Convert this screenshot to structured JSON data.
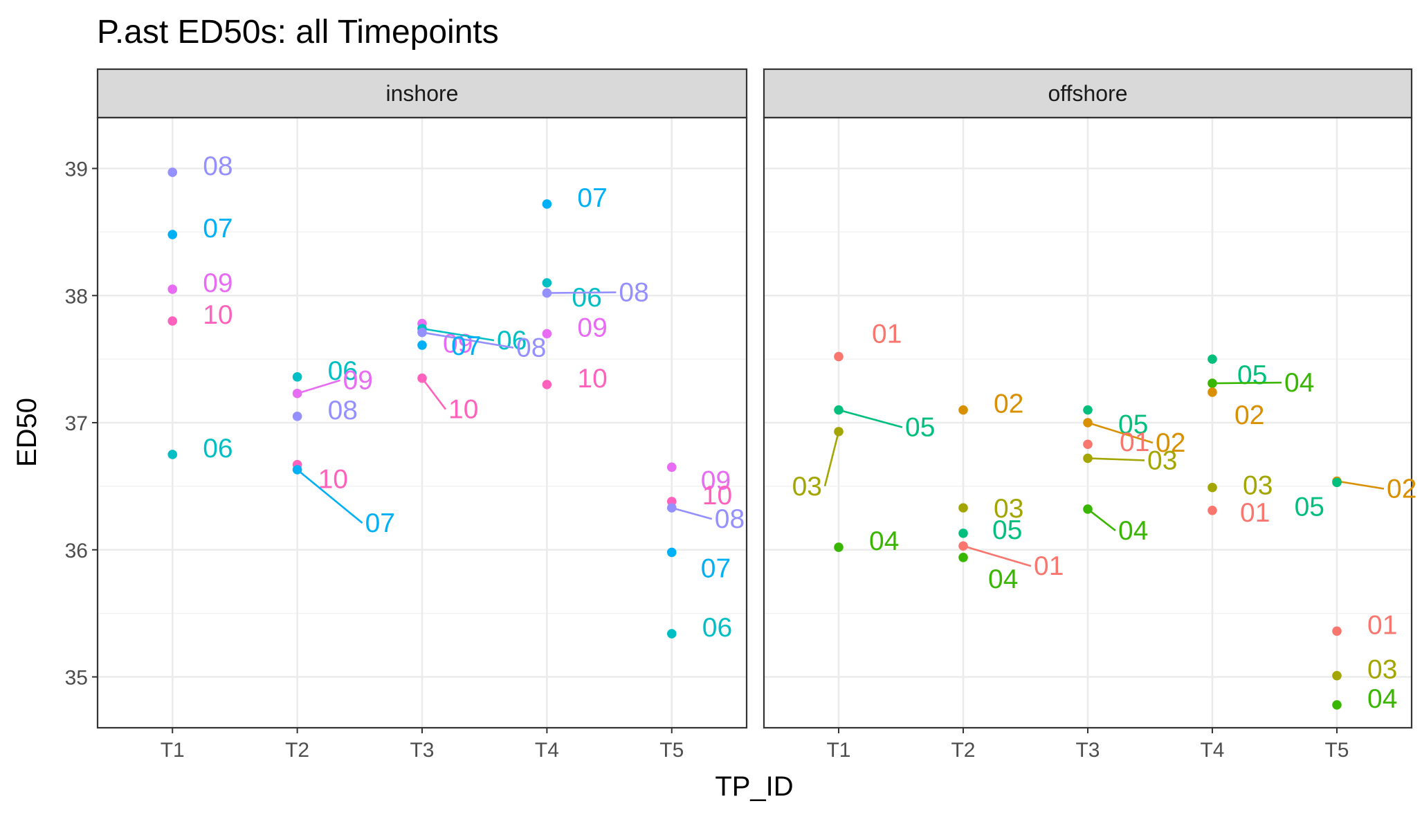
{
  "chart_data": {
    "type": "scatter",
    "title": "P.ast ED50s: all Timepoints",
    "xlabel": "TP_ID",
    "ylabel": "ED50",
    "categories": [
      "T1",
      "T2",
      "T3",
      "T4",
      "T5"
    ],
    "ylim": [
      34.6,
      39.4
    ],
    "yticks": [
      35,
      36,
      37,
      38,
      39
    ],
    "grid": true,
    "legend": "none",
    "colors": {
      "01": "#F8766D",
      "02": "#D89000",
      "03": "#A3A500",
      "04": "#39B600",
      "05": "#00BF7D",
      "06": "#00BFC4",
      "07": "#00B0F6",
      "08": "#9590FF",
      "09": "#E76BF3",
      "10": "#FF62BC"
    },
    "panels": [
      {
        "strip": "inshore",
        "points": [
          {
            "x": "T1",
            "id": "08",
            "y": 38.97
          },
          {
            "x": "T1",
            "id": "07",
            "y": 38.48
          },
          {
            "x": "T1",
            "id": "09",
            "y": 38.05
          },
          {
            "x": "T1",
            "id": "10",
            "y": 37.8
          },
          {
            "x": "T1",
            "id": "06",
            "y": 36.75
          },
          {
            "x": "T2",
            "id": "06",
            "y": 37.36
          },
          {
            "x": "T2",
            "id": "09",
            "y": 37.23
          },
          {
            "x": "T2",
            "id": "08",
            "y": 37.05
          },
          {
            "x": "T2",
            "id": "10",
            "y": 36.67
          },
          {
            "x": "T2",
            "id": "07",
            "y": 36.63
          },
          {
            "x": "T3",
            "id": "09",
            "y": 37.78
          },
          {
            "x": "T3",
            "id": "06",
            "y": 37.74
          },
          {
            "x": "T3",
            "id": "08",
            "y": 37.71
          },
          {
            "x": "T3",
            "id": "07",
            "y": 37.61
          },
          {
            "x": "T3",
            "id": "10",
            "y": 37.35
          },
          {
            "x": "T4",
            "id": "07",
            "y": 38.72
          },
          {
            "x": "T4",
            "id": "06",
            "y": 38.1
          },
          {
            "x": "T4",
            "id": "08",
            "y": 38.02
          },
          {
            "x": "T4",
            "id": "09",
            "y": 37.7
          },
          {
            "x": "T4",
            "id": "10",
            "y": 37.3
          },
          {
            "x": "T5",
            "id": "09",
            "y": 36.65
          },
          {
            "x": "T5",
            "id": "10",
            "y": 36.38
          },
          {
            "x": "T5",
            "id": "08",
            "y": 36.33
          },
          {
            "x": "T5",
            "id": "07",
            "y": 35.98
          },
          {
            "x": "T5",
            "id": "06",
            "y": 35.34
          }
        ]
      },
      {
        "strip": "offshore",
        "points": [
          {
            "x": "T1",
            "id": "01",
            "y": 37.52
          },
          {
            "x": "T1",
            "id": "05",
            "y": 37.1
          },
          {
            "x": "T1",
            "id": "03",
            "y": 36.93
          },
          {
            "x": "T1",
            "id": "04",
            "y": 36.02
          },
          {
            "x": "T2",
            "id": "02",
            "y": 37.1
          },
          {
            "x": "T2",
            "id": "03",
            "y": 36.33
          },
          {
            "x": "T2",
            "id": "05",
            "y": 36.13
          },
          {
            "x": "T2",
            "id": "01",
            "y": 36.03
          },
          {
            "x": "T2",
            "id": "04",
            "y": 35.94
          },
          {
            "x": "T3",
            "id": "05",
            "y": 37.1
          },
          {
            "x": "T3",
            "id": "02",
            "y": 37.0
          },
          {
            "x": "T3",
            "id": "01",
            "y": 36.83
          },
          {
            "x": "T3",
            "id": "03",
            "y": 36.72
          },
          {
            "x": "T3",
            "id": "04",
            "y": 36.32
          },
          {
            "x": "T4",
            "id": "05",
            "y": 37.5
          },
          {
            "x": "T4",
            "id": "04",
            "y": 37.31
          },
          {
            "x": "T4",
            "id": "02",
            "y": 37.24
          },
          {
            "x": "T4",
            "id": "03",
            "y": 36.49
          },
          {
            "x": "T4",
            "id": "01",
            "y": 36.31
          },
          {
            "x": "T5",
            "id": "02",
            "y": 36.54
          },
          {
            "x": "T5",
            "id": "05",
            "y": 36.53
          },
          {
            "x": "T5",
            "id": "01",
            "y": 35.36
          },
          {
            "x": "T5",
            "id": "03",
            "y": 35.01
          },
          {
            "x": "T5",
            "id": "04",
            "y": 34.78
          }
        ]
      }
    ]
  }
}
